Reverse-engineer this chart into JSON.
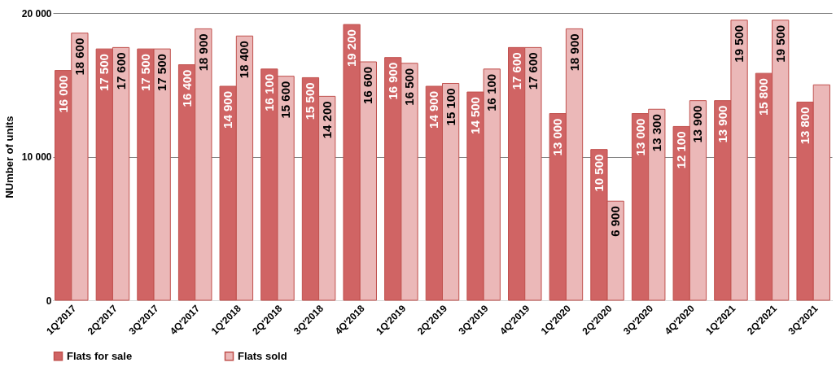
{
  "chart_data": {
    "type": "bar",
    "ylabel": "NUmber of units",
    "categories": [
      "1Q'2017",
      "2Q'2017",
      "3Q'2017",
      "4Q'2017",
      "1Q'2018",
      "2Q'2018",
      "3Q'2018",
      "4Q'2018",
      "1Q'2019",
      "2Q'2019",
      "3Q'2019",
      "4Q'2019",
      "1Q'2020",
      "2Q'2020",
      "3Q'2020",
      "4Q'2020",
      "1Q'2021",
      "2Q'2021",
      "3Q'2021"
    ],
    "series": [
      {
        "name": "Flats for sale",
        "color": "#d06464",
        "values": [
          16000,
          17500,
          17500,
          16400,
          14900,
          16100,
          15500,
          19200,
          16900,
          14900,
          14500,
          17600,
          13000,
          10500,
          13000,
          12100,
          13900,
          15800,
          13800
        ],
        "value_labels": [
          "16 000",
          "17 500",
          "17 500",
          "16 400",
          "14 900",
          "16 100",
          "15 500",
          "19 200",
          "16 900",
          "14 900",
          "14 500",
          "17 600",
          "13 000",
          "10 500",
          "13 000",
          "12 100",
          "13 900",
          "15 800",
          "13 800"
        ]
      },
      {
        "name": "Flats sold",
        "color": "#ebb8b8",
        "values": [
          18600,
          17600,
          17500,
          18900,
          18400,
          15600,
          14200,
          16600,
          16500,
          15100,
          16100,
          17600,
          18900,
          6900,
          13300,
          13900,
          19500,
          19500,
          15000
        ],
        "value_labels": [
          "18 600",
          "17 600",
          "17 500",
          "18 900",
          "18 400",
          "15 600",
          "14 200",
          "16 600",
          "16 500",
          "15 100",
          "16 100",
          "17 600",
          "18 900",
          "6 900",
          "13 300",
          "13 900",
          "19 500",
          "19 500",
          null
        ]
      }
    ],
    "ylim": [
      0,
      20000
    ],
    "yticks": [
      0,
      {
        "value": 10000,
        "label": "10 000"
      },
      {
        "value": 20000,
        "label": "20 000"
      }
    ],
    "grid": "y",
    "legend": "bottom"
  }
}
